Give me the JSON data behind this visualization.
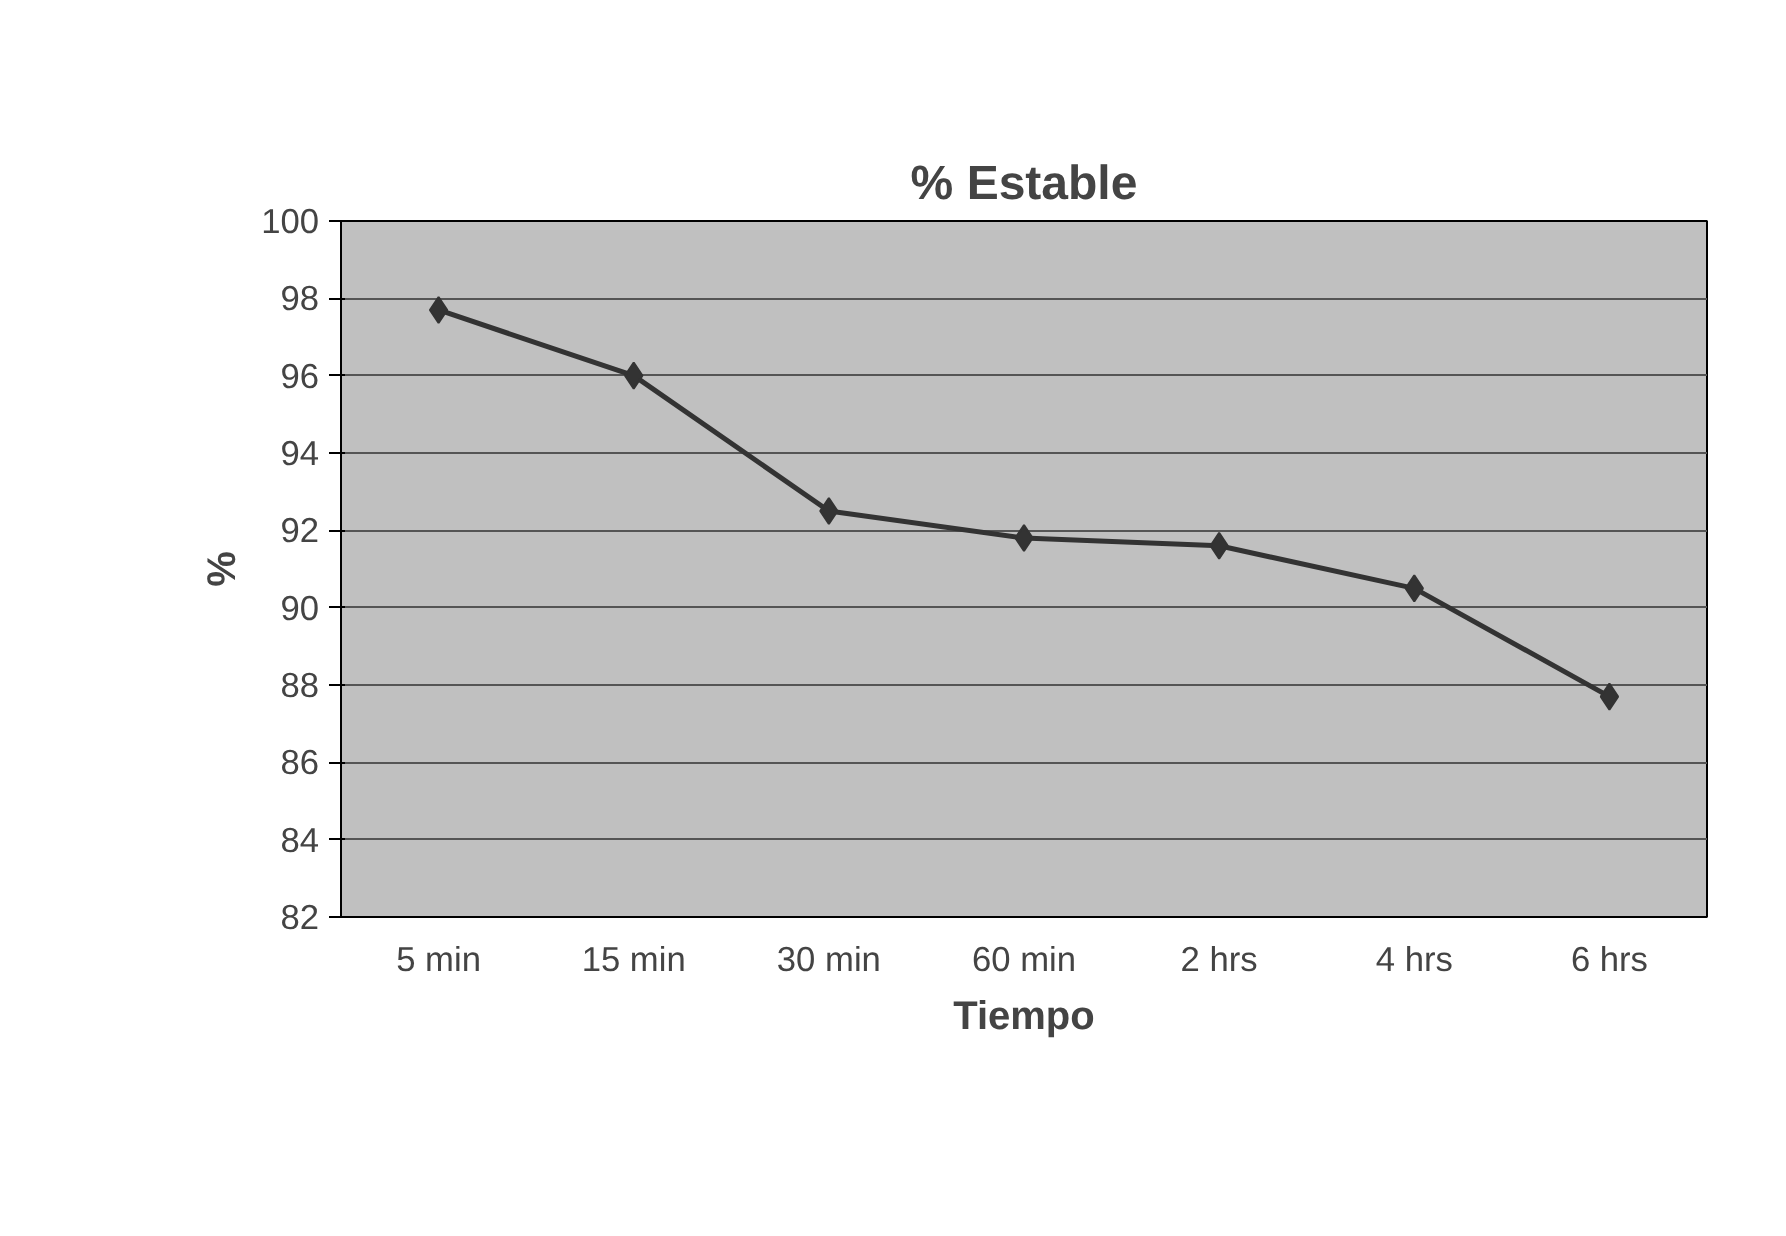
{
  "chart_data": {
    "type": "line",
    "title": "% Estable",
    "xlabel": "Tiempo",
    "ylabel": "%",
    "categories": [
      "5 min",
      "15 min",
      "30 min",
      "60 min",
      "2 hrs",
      "4 hrs",
      "6 hrs"
    ],
    "series": [
      {
        "color": "#333333",
        "values": [
          97.7,
          96.0,
          92.5,
          91.8,
          91.6,
          90.5,
          87.7
        ]
      }
    ],
    "ylim": [
      82,
      100
    ],
    "yticks": [
      82,
      84,
      86,
      88,
      90,
      92,
      94,
      96,
      98,
      100
    ],
    "grid": "y",
    "marker": "diamond",
    "line_style": "solid"
  }
}
